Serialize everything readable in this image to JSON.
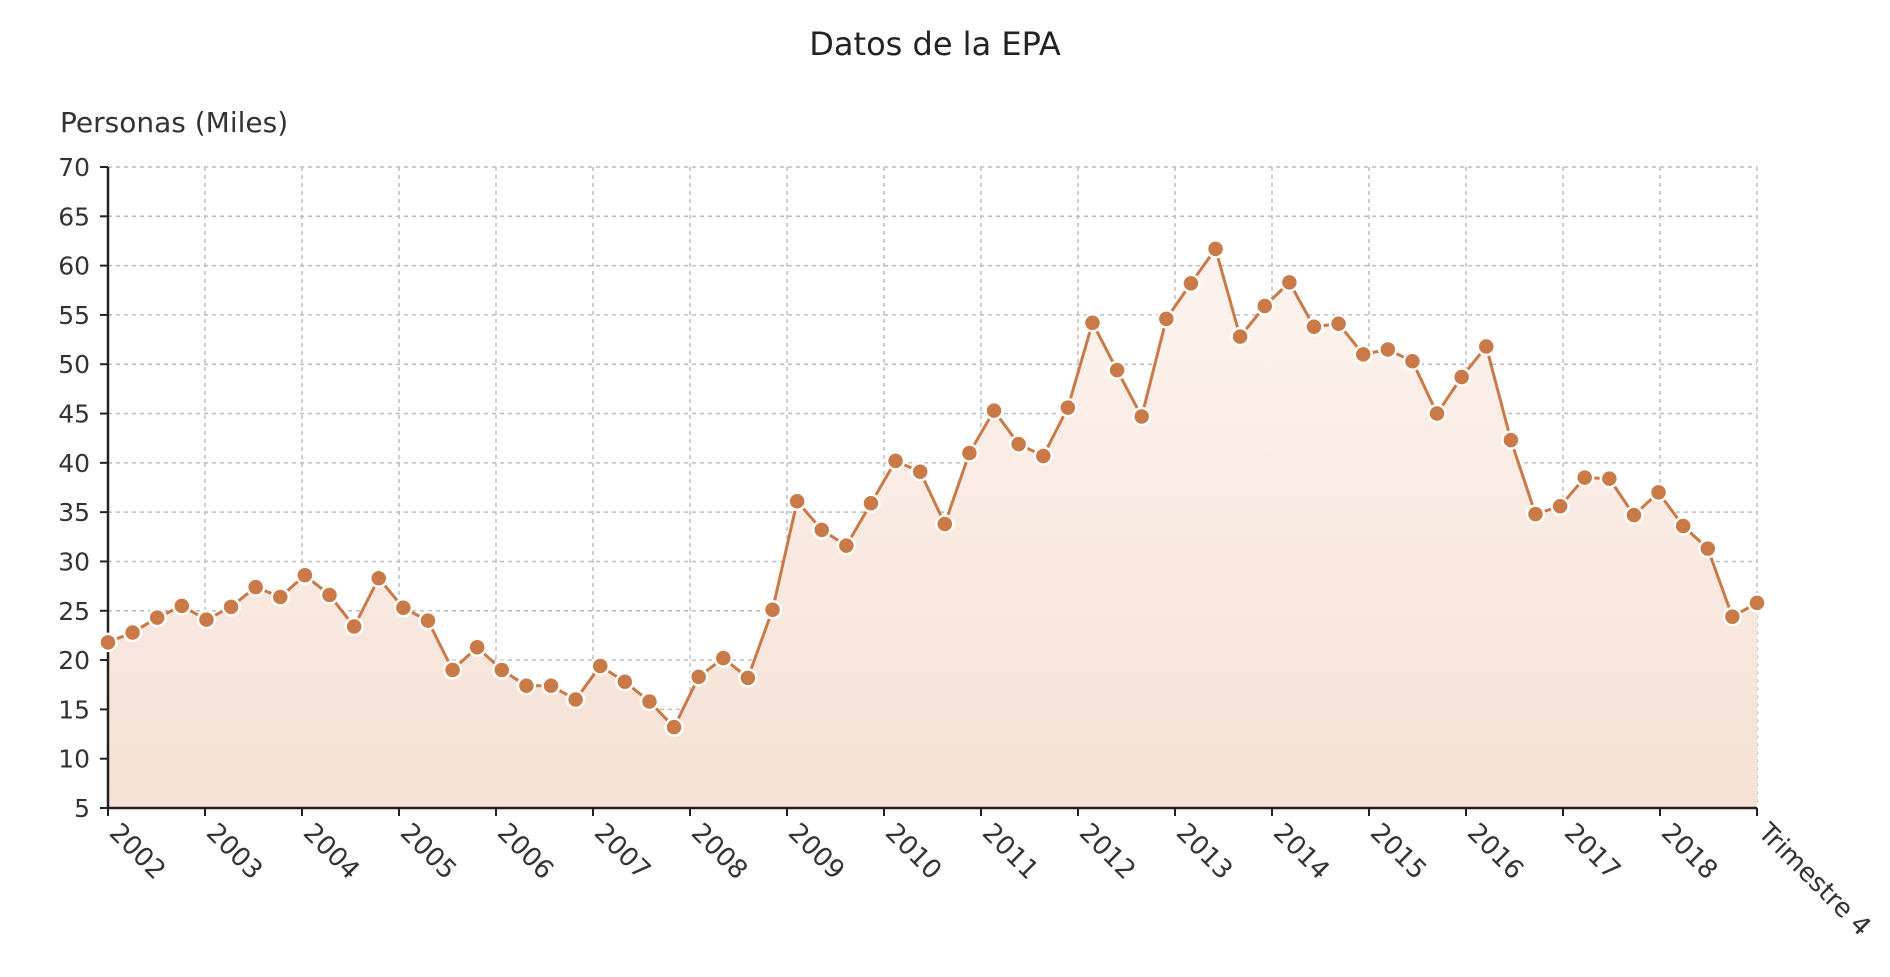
{
  "chart_data": {
    "type": "area",
    "title": "Datos de la EPA",
    "ylabel": "Personas (Miles)",
    "xlabel": "",
    "ylim": [
      5,
      70
    ],
    "yticks": [
      5,
      10,
      15,
      20,
      25,
      30,
      35,
      40,
      45,
      50,
      55,
      60,
      65,
      70
    ],
    "grid": true,
    "x_tick_labels": [
      "2002",
      "2003",
      "2004",
      "2005",
      "2006",
      "2007",
      "2008",
      "2009",
      "2010",
      "2011",
      "2012",
      "2013",
      "2014",
      "2015",
      "2016",
      "2017",
      "2018",
      "Trimestre 4"
    ],
    "series": [
      {
        "values": [
          21.8,
          22.8,
          24.3,
          25.5,
          24.1,
          25.4,
          27.4,
          26.4,
          28.6,
          26.6,
          23.4,
          28.3,
          25.3,
          24.0,
          19.0,
          21.3,
          19.0,
          17.4,
          17.4,
          16.0,
          19.4,
          17.8,
          15.8,
          13.2,
          18.3,
          20.2,
          18.2,
          25.1,
          36.1,
          33.2,
          31.6,
          35.9,
          40.2,
          39.1,
          33.8,
          41.0,
          45.3,
          41.9,
          40.7,
          45.6,
          54.2,
          49.4,
          44.7,
          54.6,
          58.2,
          61.7,
          52.8,
          55.9,
          58.3,
          53.8,
          54.1,
          51.0,
          51.5,
          50.3,
          45.0,
          48.7,
          51.8,
          42.3,
          34.8,
          35.6,
          38.5,
          38.4,
          34.7,
          37.0,
          33.6,
          31.3,
          24.4,
          25.8
        ]
      }
    ],
    "colors": {
      "line": "#c97a47",
      "marker": "#c97a47",
      "marker_edge": "#ffffff",
      "fill_top": "#fdf3ee",
      "fill_bottom": "#f5e1d6"
    }
  }
}
